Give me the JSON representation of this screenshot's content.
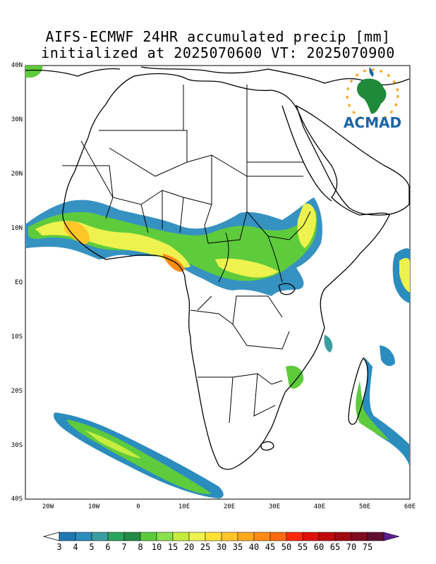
{
  "title": {
    "line1": "AIFS-ECMWF 24HR accumulated precip [mm]",
    "line2": "initialized at 2025070600 VT: 2025070900"
  },
  "logo": {
    "text": "ACMAD",
    "icon": "africa-sun-raindrop-logo"
  },
  "axes": {
    "y_ticks": [
      "40N",
      "30N",
      "20N",
      "10N",
      "EQ",
      "10S",
      "20S",
      "30S",
      "40S"
    ],
    "x_ticks": [
      "20W",
      "10W",
      "0",
      "10E",
      "20E",
      "30E",
      "40E",
      "50E",
      "60E"
    ],
    "lon_range": [
      -25,
      60
    ],
    "lat_range": [
      -40,
      40
    ]
  },
  "colorbar": {
    "labels": [
      "3",
      "4",
      "5",
      "6",
      "7",
      "8",
      "10",
      "15",
      "20",
      "25",
      "30",
      "35",
      "40",
      "45",
      "50",
      "55",
      "60",
      "65",
      "70",
      "75"
    ],
    "colors": [
      "#1f78b4",
      "#2b8cbe",
      "#3a9ea0",
      "#2ca25f",
      "#238b45",
      "#5ecb3c",
      "#8be04e",
      "#c6ec3f",
      "#eef24f",
      "#ffe135",
      "#ffc628",
      "#ffab1e",
      "#ff8c14",
      "#ff6a10",
      "#ff2a0a",
      "#e0100a",
      "#c00a0a",
      "#a00a14",
      "#800a1e",
      "#60102e",
      "#5a1e8c"
    ]
  },
  "colors": {
    "land_outline": "#000000",
    "background": "#ffffff"
  }
}
